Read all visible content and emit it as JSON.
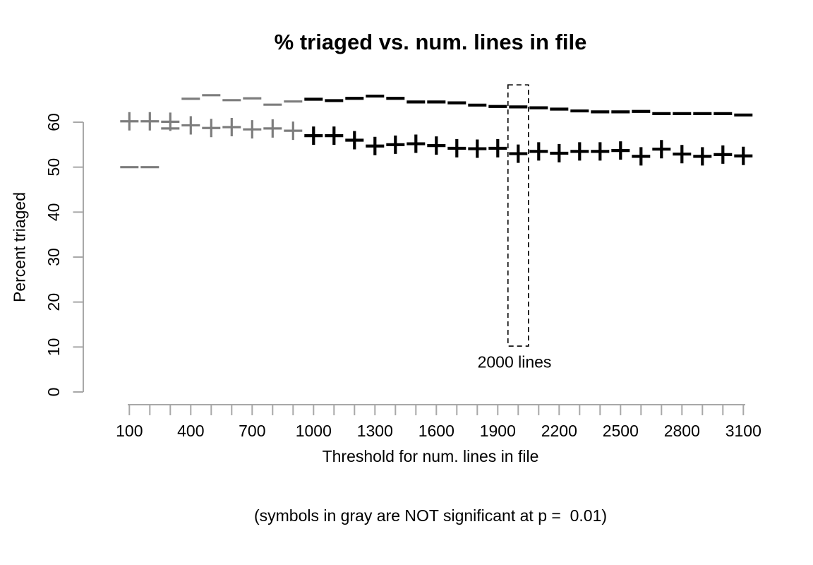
{
  "chart_data": {
    "type": "scatter",
    "title": "% triaged vs. num. lines in file",
    "ylabel": "Percent triaged",
    "xlabel_line1": "Threshold for num. lines in file",
    "xlabel_line2": "(symbols in gray are NOT significant at p =  0.01)",
    "x_range": [
      100,
      3100
    ],
    "x_tick_step": 100,
    "x_labeled_ticks": [
      100,
      400,
      700,
      1000,
      1300,
      1600,
      1900,
      2200,
      2500,
      2800,
      3100
    ],
    "y_ticks": [
      0,
      10,
      20,
      30,
      40,
      50,
      60
    ],
    "y_range": [
      0,
      68
    ],
    "grid": false,
    "legend": "none",
    "colors": {
      "significant": "#000000",
      "not_significant": "#7d7d7d",
      "axis": "#a8a8a8",
      "annotation_box": "#000000"
    },
    "gray_max_x": 900,
    "x": [
      100,
      200,
      300,
      400,
      500,
      600,
      700,
      800,
      900,
      1000,
      1100,
      1200,
      1300,
      1400,
      1500,
      1600,
      1700,
      1800,
      1900,
      2000,
      2100,
      2200,
      2300,
      2400,
      2500,
      2600,
      2700,
      2800,
      2900,
      3000,
      3100
    ],
    "series": [
      {
        "name": "dash_series",
        "symbol": "-",
        "values": [
          50.0,
          50.0,
          58.6,
          65.2,
          66.0,
          64.9,
          65.3,
          63.9,
          64.6,
          65.1,
          64.8,
          65.3,
          65.8,
          65.3,
          64.5,
          64.5,
          64.3,
          63.8,
          63.5,
          63.4,
          63.2,
          62.9,
          62.5,
          62.3,
          62.3,
          62.4,
          61.9,
          61.9,
          61.9,
          61.9,
          61.6
        ]
      },
      {
        "name": "plus_series",
        "symbol": "+",
        "values": [
          60.2,
          60.2,
          60.1,
          59.3,
          58.7,
          58.9,
          58.4,
          58.6,
          58.1,
          57.0,
          57.0,
          56.0,
          54.7,
          55.0,
          55.2,
          54.8,
          54.2,
          54.1,
          54.2,
          53.0,
          53.5,
          53.1,
          53.5,
          53.5,
          53.7,
          52.4,
          54.0,
          52.9,
          52.4,
          52.8,
          52.5
        ]
      }
    ],
    "annotation": {
      "label": "2000 lines",
      "x_center": 2000,
      "x1": 1950,
      "x2": 2050,
      "y1": 10.2,
      "y2": 68.3
    }
  }
}
